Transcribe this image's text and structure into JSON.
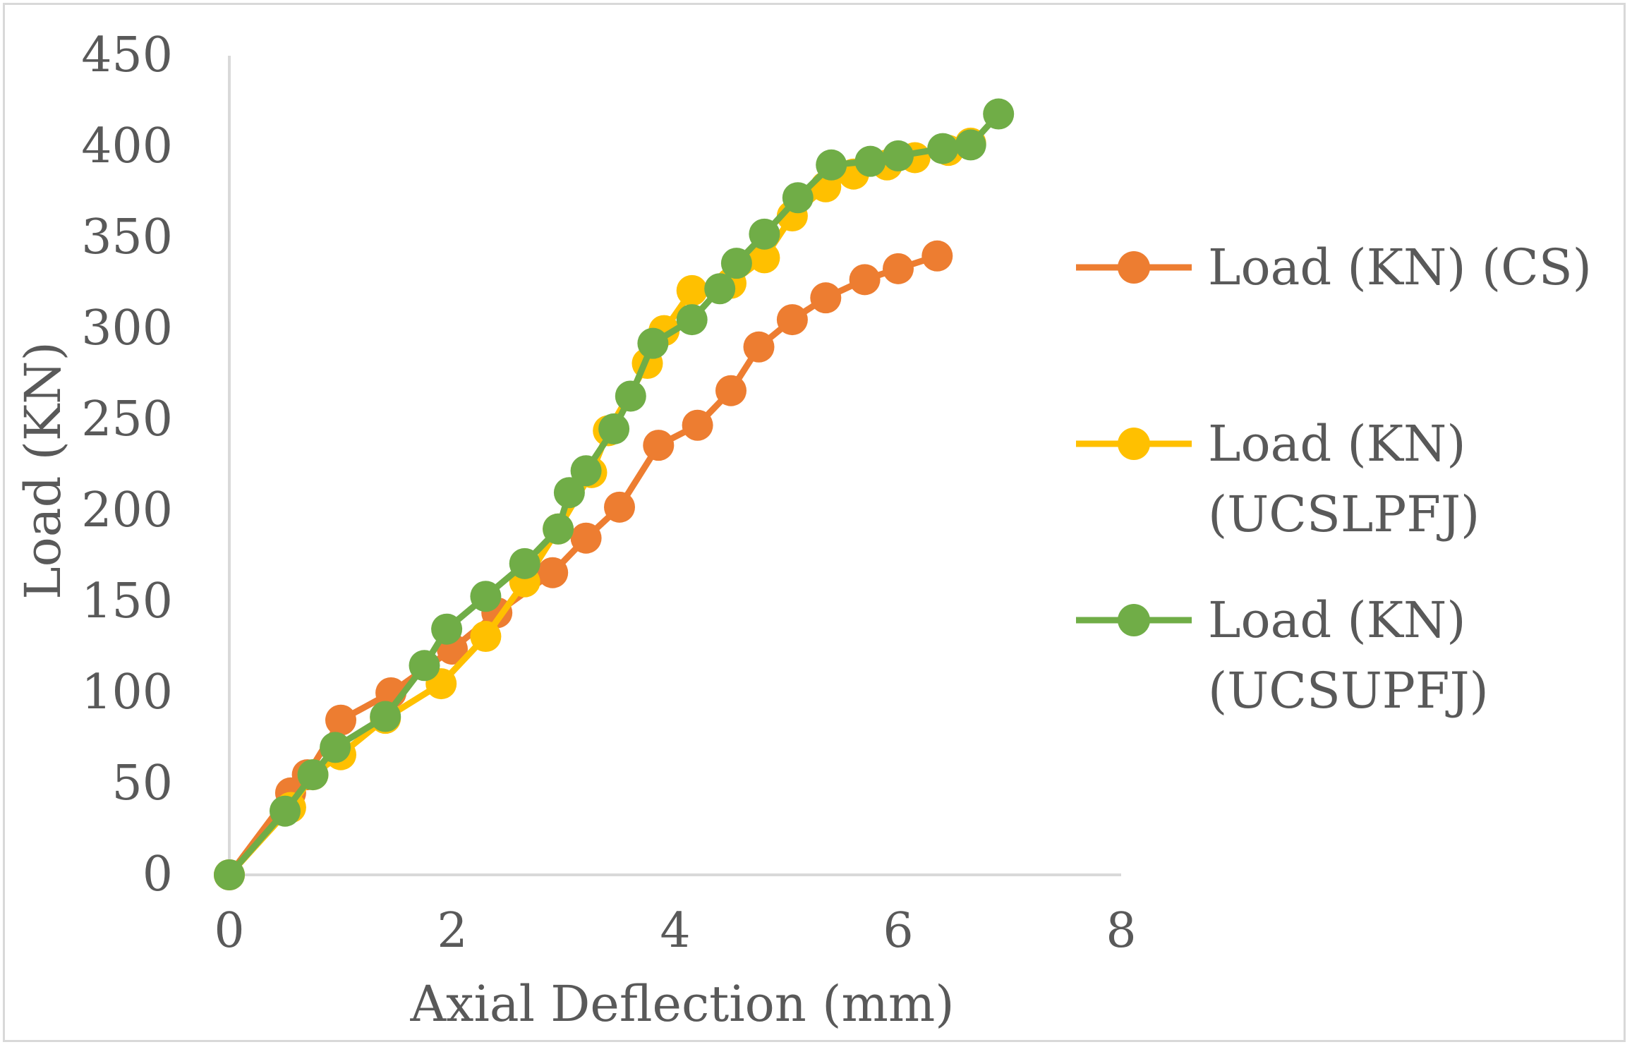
{
  "chart_data": {
    "type": "line",
    "title": "",
    "xlabel": "Axial Deflection (mm)",
    "ylabel": "Load (KN)",
    "xlim": [
      0,
      8
    ],
    "ylim": [
      0,
      450
    ],
    "x_ticks": [
      0,
      2,
      4,
      6,
      8
    ],
    "y_ticks": [
      0,
      50,
      100,
      150,
      200,
      250,
      300,
      350,
      400,
      450
    ],
    "x_tick_labels": [
      "0",
      "2",
      "4",
      "6",
      "8"
    ],
    "y_tick_labels": [
      "0",
      "50",
      "100",
      "150",
      "200",
      "250",
      "300",
      "350",
      "400",
      "450"
    ],
    "grid": false,
    "legend_position": "right",
    "series": [
      {
        "name": "Load (KN) (CS)",
        "legend_lines": [
          "Load (KN) (CS)"
        ],
        "color": "#ed7d31",
        "points": [
          [
            0,
            0
          ],
          [
            0.55,
            45
          ],
          [
            0.7,
            55
          ],
          [
            1.0,
            85
          ],
          [
            1.45,
            100
          ],
          [
            2.0,
            124
          ],
          [
            2.4,
            144
          ],
          [
            2.9,
            166
          ],
          [
            3.2,
            185
          ],
          [
            3.5,
            202
          ],
          [
            3.85,
            236
          ],
          [
            4.2,
            247
          ],
          [
            4.5,
            266
          ],
          [
            4.75,
            290
          ],
          [
            5.05,
            305
          ],
          [
            5.35,
            317
          ],
          [
            5.7,
            327
          ],
          [
            6.0,
            333
          ],
          [
            6.35,
            340
          ]
        ]
      },
      {
        "name": "Load (KN) (UCSLPFJ)",
        "legend_lines": [
          "Load (KN)",
          "(UCSLPFJ)"
        ],
        "color": "#ffc000",
        "points": [
          [
            0,
            0
          ],
          [
            0.55,
            37
          ],
          [
            0.75,
            55
          ],
          [
            1.0,
            66
          ],
          [
            1.4,
            86
          ],
          [
            1.9,
            105
          ],
          [
            2.3,
            131
          ],
          [
            2.65,
            161
          ],
          [
            2.95,
            190
          ],
          [
            3.25,
            221
          ],
          [
            3.4,
            244
          ],
          [
            3.75,
            281
          ],
          [
            3.9,
            299
          ],
          [
            4.15,
            321
          ],
          [
            4.5,
            325
          ],
          [
            4.8,
            339
          ],
          [
            5.05,
            362
          ],
          [
            5.35,
            378
          ],
          [
            5.6,
            385
          ],
          [
            5.9,
            390
          ],
          [
            6.15,
            394
          ],
          [
            6.45,
            398
          ],
          [
            6.65,
            402
          ]
        ]
      },
      {
        "name": "Load (KN) (UCSUPFJ)",
        "legend_lines": [
          "Load (KN)",
          "(UCSUPFJ)"
        ],
        "color": "#70ad47",
        "points": [
          [
            0,
            0
          ],
          [
            0.5,
            35
          ],
          [
            0.75,
            55
          ],
          [
            0.95,
            70
          ],
          [
            1.4,
            87
          ],
          [
            1.75,
            115
          ],
          [
            1.95,
            135
          ],
          [
            2.3,
            153
          ],
          [
            2.65,
            171
          ],
          [
            2.95,
            190
          ],
          [
            3.05,
            210
          ],
          [
            3.2,
            222
          ],
          [
            3.45,
            245
          ],
          [
            3.6,
            263
          ],
          [
            3.8,
            292
          ],
          [
            4.15,
            305
          ],
          [
            4.4,
            322
          ],
          [
            4.55,
            336
          ],
          [
            4.8,
            352
          ],
          [
            5.1,
            372
          ],
          [
            5.4,
            390
          ],
          [
            5.75,
            392
          ],
          [
            6.0,
            395
          ],
          [
            6.4,
            399
          ],
          [
            6.65,
            401
          ],
          [
            6.9,
            418
          ]
        ]
      }
    ]
  }
}
